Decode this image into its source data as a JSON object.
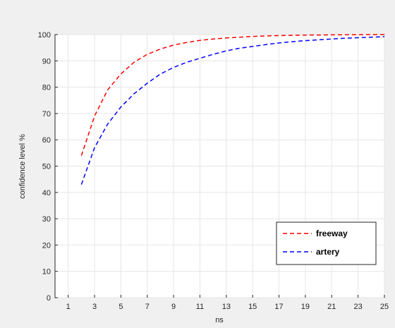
{
  "chart_data": {
    "type": "line",
    "title": "",
    "xlabel": "ns",
    "ylabel": "confidence level %",
    "xlim": [
      0,
      25
    ],
    "ylim": [
      0,
      100
    ],
    "xticks": [
      1,
      3,
      5,
      7,
      9,
      11,
      13,
      15,
      17,
      19,
      21,
      23,
      25
    ],
    "yticks": [
      0,
      10,
      20,
      30,
      40,
      50,
      60,
      70,
      80,
      90,
      100
    ],
    "grid": true,
    "legend_position": "bottom-right",
    "series": [
      {
        "name": "freeway",
        "color": "#ff0000",
        "style": "dashed",
        "x": [
          2,
          3,
          4,
          5,
          6,
          7,
          8,
          9,
          10,
          11,
          12,
          13,
          14,
          15,
          16,
          17,
          18,
          19,
          20,
          21,
          22,
          23,
          24,
          25
        ],
        "y": [
          54,
          69,
          79,
          85,
          89.5,
          92.5,
          94.5,
          96,
          97,
          97.8,
          98.3,
          98.7,
          99,
          99.3,
          99.5,
          99.6,
          99.7,
          99.8,
          99.85,
          99.9,
          99.92,
          99.95,
          99.97,
          100
        ]
      },
      {
        "name": "artery",
        "color": "#0000ff",
        "style": "dashed",
        "x": [
          2,
          3,
          4,
          5,
          6,
          7,
          8,
          9,
          10,
          11,
          12,
          13,
          14,
          15,
          16,
          17,
          18,
          19,
          20,
          21,
          22,
          23,
          24,
          25
        ],
        "y": [
          43,
          57,
          66,
          72.5,
          77.5,
          81.5,
          85,
          87.5,
          89.5,
          91,
          92.5,
          93.8,
          94.8,
          95.5,
          96.2,
          96.8,
          97.3,
          97.7,
          98,
          98.3,
          98.6,
          98.8,
          99,
          99.2
        ]
      }
    ]
  }
}
